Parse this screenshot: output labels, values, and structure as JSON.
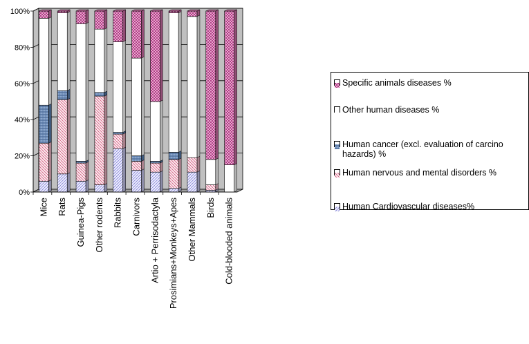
{
  "chart_data": {
    "type": "bar",
    "stacked": "percent",
    "three_d": true,
    "categories": [
      "Mice",
      "Rats",
      "Guinea-Pigs",
      "Other rodents",
      "Rabbits",
      "Carnivors",
      "Artio + Perrisodactyla",
      "Prosimians+Monkeys+Apes",
      "Other Mammals",
      "Birds",
      "Cold-blooded animals"
    ],
    "ylim": [
      0,
      100
    ],
    "yticks": [
      0,
      20,
      40,
      60,
      80,
      100
    ],
    "ytick_labels": [
      "0%",
      "20%",
      "40%",
      "60%",
      "80%",
      "100%"
    ],
    "grid": true,
    "legend_position": "right",
    "series": [
      {
        "name": "Human Cardiovascular diseases%",
        "color": "#c8c8f0",
        "pattern": "diag-fine-left",
        "values": [
          6,
          10,
          6,
          4,
          24,
          12,
          11,
          2,
          11,
          1,
          0
        ]
      },
      {
        "name": "Human nervous and mental disorders %",
        "color": "#f2b8c8",
        "pattern": "diag-fine-right",
        "values": [
          21,
          41,
          10,
          49,
          8,
          5,
          5,
          16,
          8,
          3,
          0
        ]
      },
      {
        "name": "Human cancer (excl. evaluation of carcino hazards) %",
        "color": "#5a7fb0",
        "pattern": "hatch-blue",
        "values": [
          21,
          5,
          1,
          2,
          1,
          3,
          1,
          4,
          0,
          0,
          0
        ]
      },
      {
        "name": "Other human diseases %",
        "color": "#ffffff",
        "pattern": "solid-white",
        "values": [
          48,
          43,
          76,
          35,
          50,
          54,
          33,
          77,
          78,
          14,
          15
        ]
      },
      {
        "name": "Specific animals diseases  %",
        "color": "#d070a8",
        "pattern": "checker-magenta",
        "values": [
          4,
          1,
          7,
          10,
          17,
          26,
          50,
          1,
          3,
          82,
          85
        ]
      }
    ]
  }
}
